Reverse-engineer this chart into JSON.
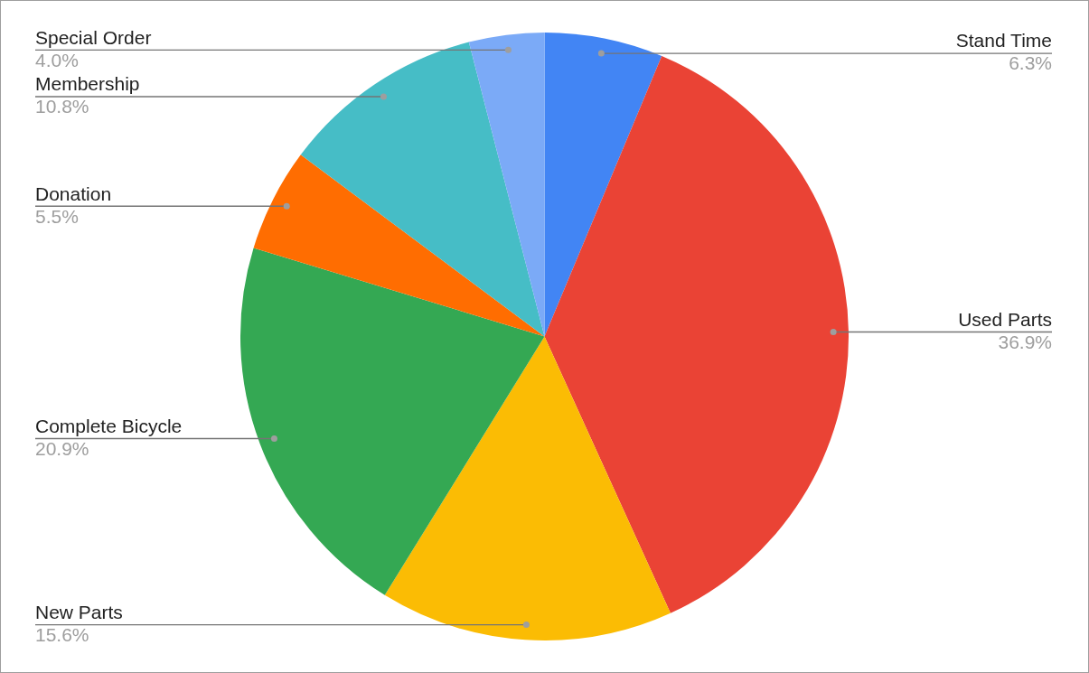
{
  "chart_data": {
    "type": "pie",
    "categories": [
      "Stand Time",
      "Used Parts",
      "New Parts",
      "Complete Bicycle",
      "Donation",
      "Membership",
      "Special Order"
    ],
    "values": [
      6.3,
      36.9,
      15.6,
      20.9,
      5.5,
      10.8,
      4.0
    ],
    "colors": [
      "#4285f4",
      "#ea4335",
      "#fbbc04",
      "#34a853",
      "#ff6d01",
      "#46bdc6",
      "#7baaf7"
    ],
    "value_labels": [
      "6.3%",
      "36.9%",
      "15.6%",
      "20.9%",
      "5.5%",
      "10.8%",
      "4.0%"
    ],
    "legend": false
  }
}
